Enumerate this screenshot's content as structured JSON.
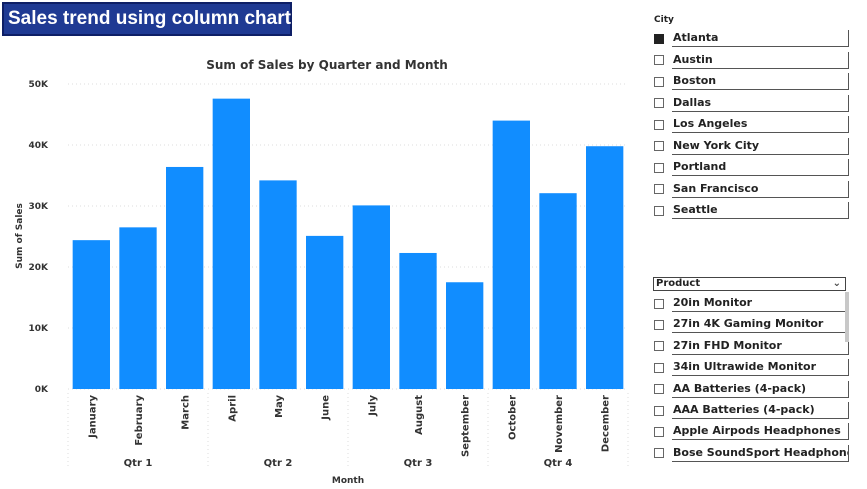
{
  "banner": {
    "title": "Sales trend using column chart"
  },
  "chart_data": {
    "type": "bar",
    "title": "Sum of Sales by Quarter and Month",
    "xlabel": "Month",
    "ylabel": "Sum of Sales",
    "ylim": [
      0,
      50000
    ],
    "yticks": [
      "0K",
      "10K",
      "20K",
      "30K",
      "40K",
      "50K"
    ],
    "categories": [
      "January",
      "February",
      "March",
      "April",
      "May",
      "June",
      "July",
      "August",
      "September",
      "October",
      "November",
      "December"
    ],
    "values": [
      24400,
      26500,
      36400,
      47600,
      34200,
      25100,
      30100,
      22300,
      17500,
      44000,
      32100,
      39800
    ],
    "groups": [
      {
        "label": "Qtr 1",
        "months": 3
      },
      {
        "label": "Qtr 2",
        "months": 3
      },
      {
        "label": "Qtr 3",
        "months": 3
      },
      {
        "label": "Qtr 4",
        "months": 3
      }
    ],
    "bar_color": "#118DFF",
    "grid": true
  },
  "city_slicer": {
    "title": "City",
    "items": [
      {
        "label": "Atlanta",
        "checked": true
      },
      {
        "label": "Austin",
        "checked": false
      },
      {
        "label": "Boston",
        "checked": false
      },
      {
        "label": "Dallas",
        "checked": false
      },
      {
        "label": "Los Angeles",
        "checked": false
      },
      {
        "label": "New York City",
        "checked": false
      },
      {
        "label": "Portland",
        "checked": false
      },
      {
        "label": "San Francisco",
        "checked": false
      },
      {
        "label": "Seattle",
        "checked": false
      }
    ]
  },
  "product_slicer": {
    "title": "Product",
    "items": [
      {
        "label": "20in Monitor"
      },
      {
        "label": "27in 4K Gaming Monitor"
      },
      {
        "label": "27in FHD Monitor"
      },
      {
        "label": "34in Ultrawide Monitor"
      },
      {
        "label": "AA Batteries (4-pack)"
      },
      {
        "label": "AAA Batteries (4-pack)"
      },
      {
        "label": "Apple Airpods Headphones"
      },
      {
        "label": "Bose SoundSport Headphones"
      }
    ]
  }
}
